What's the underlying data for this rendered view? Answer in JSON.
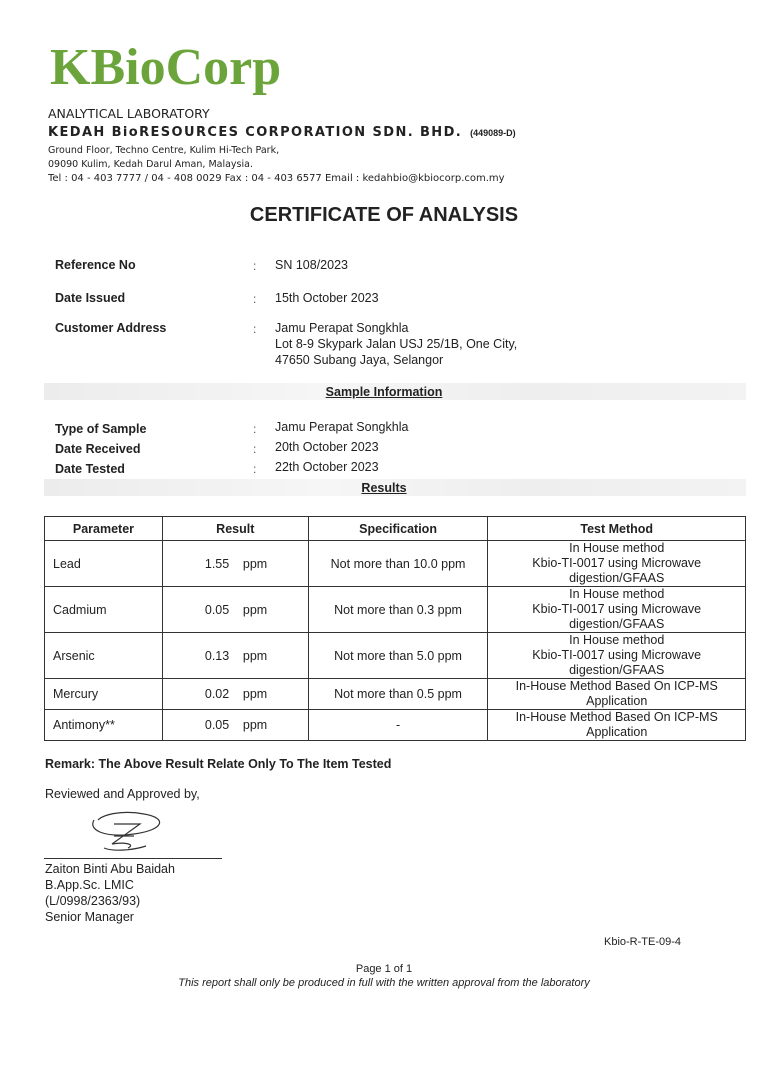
{
  "header": {
    "logo": "KBioCorp",
    "division": "ANALYTICAL LABORATORY",
    "company": "KEDAH BioRESOURCES CORPORATION SDN. BHD.",
    "reg_no": "(449089-D)",
    "address_line1": "Ground Floor, Techno Centre, Kulim Hi-Tech Park,",
    "address_line2": "09090 Kulim, Kedah Darul Aman, Malaysia.",
    "contact": "Tel : 04 - 403 7777 / 04 - 408 0029  Fax : 04 - 403 6577 Email : kedahbio@kbiocorp.com.my",
    "brand_color": "#6aa43a"
  },
  "title": "CERTIFICATE OF ANALYSIS",
  "info": {
    "reference_label": "Reference No",
    "reference": "SN 108/2023",
    "issued_label": "Date Issued",
    "issued": "15th October 2023",
    "address_label": "Customer  Address",
    "address": [
      "Jamu Perapat Songkhla",
      "Lot 8-9 Skypark Jalan USJ 25/1B, One City,",
      "47650 Subang Jaya, Selangor"
    ],
    "colon": ":"
  },
  "sample": {
    "heading": "Sample Information",
    "type_label": "Type of Sample",
    "type": "Jamu Perapat Songkhla",
    "received_label": "Date Received",
    "received": "20th October 2023",
    "tested_label": "Date Tested",
    "tested": "22th October 2023"
  },
  "results": {
    "heading": "Results",
    "columns": [
      "Parameter",
      "Result",
      "Specification",
      "Test Method"
    ],
    "rows": [
      {
        "parameter": "Lead",
        "value": "1.55",
        "unit": "ppm",
        "spec": "Not more than 10.0 ppm",
        "method": [
          "In House method",
          "Kbio-TI-0017 using Microwave",
          "digestion/GFAAS"
        ]
      },
      {
        "parameter": "Cadmium",
        "value": "0.05",
        "unit": "ppm",
        "spec": "Not more than 0.3 ppm",
        "method": [
          "In House method",
          "Kbio-TI-0017 using Microwave",
          "digestion/GFAAS"
        ]
      },
      {
        "parameter": "Arsenic",
        "value": "0.13",
        "unit": "ppm",
        "spec": "Not more than 5.0 ppm",
        "method": [
          "In House method",
          "Kbio-TI-0017 using Microwave",
          "digestion/GFAAS"
        ]
      },
      {
        "parameter": "Mercury",
        "value": "0.02",
        "unit": "ppm",
        "spec": "Not more than 0.5 ppm",
        "method": [
          "In-House Method Based On ICP-MS",
          "Application"
        ]
      },
      {
        "parameter": "Antimony**",
        "value": "0.05",
        "unit": "ppm",
        "spec": "-",
        "method": [
          "In-House Method Based On ICP-MS",
          "Application"
        ]
      }
    ]
  },
  "remark": "Remark:  The Above Result Relate Only To The Item Tested",
  "approval": {
    "label": "Reviewed and Approved by,",
    "name": "Zaiton Binti Abu Baidah",
    "qualification": "B.App.Sc. LMIC",
    "license": "(L/0998/2363/93)",
    "position": "Senior  Manager"
  },
  "footer": {
    "form_code": "Kbio-R-TE-09-4",
    "page": "Page 1 of 1",
    "note": "This report shall only be produced in full with the written approval from the laboratory"
  }
}
